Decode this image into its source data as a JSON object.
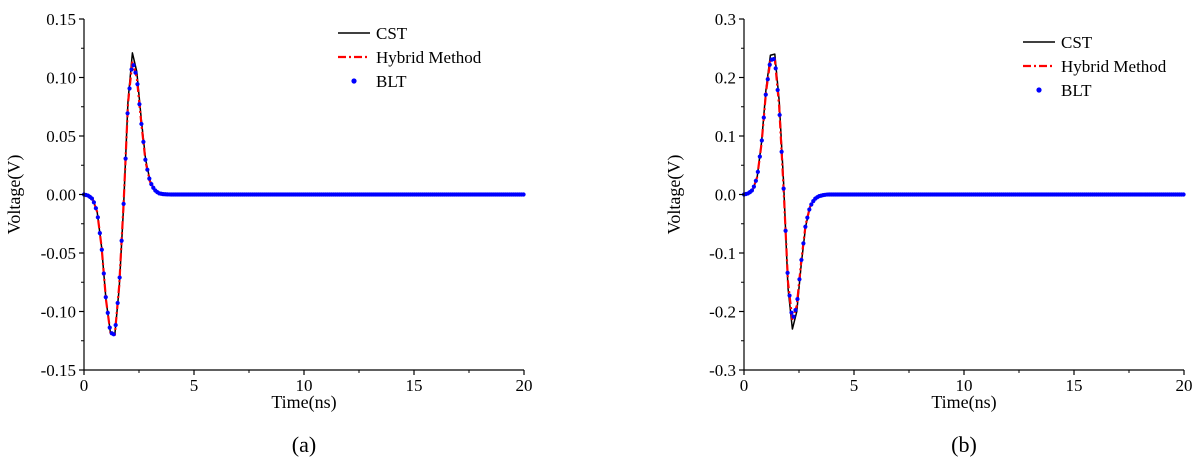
{
  "chart_data": [
    {
      "type": "line",
      "panel_label": "(a)",
      "xlabel": "Time(ns)",
      "ylabel": "Voltage(V)",
      "xlim": [
        0,
        20
      ],
      "ylim": [
        -0.15,
        0.15
      ],
      "xticks": [
        0,
        5,
        10,
        15,
        20
      ],
      "xtick_labels": [
        "0",
        "5",
        "10",
        "15",
        "20"
      ],
      "yticks": [
        -0.15,
        -0.1,
        -0.05,
        0.0,
        0.05,
        0.1,
        0.15
      ],
      "ytick_labels": [
        "-0.15",
        "-0.10",
        "-0.05",
        "0.00",
        "0.05",
        "0.10",
        "0.15"
      ],
      "grid": false,
      "legend": "top-right",
      "series": [
        {
          "name": "CST",
          "color": "#000000",
          "style": "solid",
          "x": [
            0,
            0.2,
            0.4,
            0.6,
            0.8,
            1.0,
            1.2,
            1.4,
            1.6,
            1.8,
            2.0,
            2.2,
            2.4,
            2.6,
            2.8,
            3.0,
            3.2,
            3.4,
            3.6,
            3.8,
            4.0,
            5,
            10,
            15,
            20
          ],
          "y": [
            0,
            -0.001,
            -0.004,
            -0.015,
            -0.045,
            -0.09,
            -0.118,
            -0.12,
            -0.08,
            -0.01,
            0.08,
            0.121,
            0.105,
            0.065,
            0.03,
            0.012,
            0.004,
            0.001,
            0.0003,
            0.0001,
            0,
            0,
            0,
            0,
            0
          ]
        },
        {
          "name": "Hybrid Method",
          "color": "#ff0000",
          "style": "dash-dot",
          "x": [
            0,
            0.2,
            0.4,
            0.6,
            0.8,
            1.0,
            1.2,
            1.4,
            1.6,
            1.8,
            2.0,
            2.2,
            2.4,
            2.6,
            2.8,
            3.0,
            3.2,
            3.4,
            3.6,
            3.8,
            4.0,
            5,
            10,
            15,
            20
          ],
          "y": [
            0,
            -0.001,
            -0.004,
            -0.015,
            -0.045,
            -0.09,
            -0.118,
            -0.12,
            -0.078,
            -0.008,
            0.078,
            0.114,
            0.1,
            0.062,
            0.028,
            0.011,
            0.004,
            0.001,
            0.0003,
            0.0001,
            0,
            0,
            0,
            0,
            0
          ]
        },
        {
          "name": "BLT",
          "color": "#0000ff",
          "style": "dots",
          "x": [
            0,
            0.2,
            0.4,
            0.6,
            0.8,
            1.0,
            1.2,
            1.4,
            1.6,
            1.8,
            2.0,
            2.2,
            2.4,
            2.6,
            2.8,
            3.0,
            3.2,
            3.4,
            3.6,
            3.8,
            4.0,
            5,
            10,
            15,
            20
          ],
          "y": [
            0,
            -0.001,
            -0.004,
            -0.015,
            -0.045,
            -0.09,
            -0.118,
            -0.12,
            -0.078,
            -0.008,
            0.078,
            0.114,
            0.1,
            0.062,
            0.028,
            0.011,
            0.004,
            0.001,
            0.0003,
            0.0001,
            0,
            0,
            0,
            0,
            0
          ]
        }
      ]
    },
    {
      "type": "line",
      "panel_label": "(b)",
      "xlabel": "Time(ns)",
      "ylabel": "Voltage(V)",
      "xlim": [
        0,
        20
      ],
      "ylim": [
        -0.3,
        0.3
      ],
      "xticks": [
        0,
        5,
        10,
        15,
        20
      ],
      "xtick_labels": [
        "0",
        "5",
        "10",
        "15",
        "20"
      ],
      "yticks": [
        -0.3,
        -0.2,
        -0.1,
        0.0,
        0.1,
        0.2,
        0.3
      ],
      "ytick_labels": [
        "-0.3",
        "-0.2",
        "-0.1",
        "0.0",
        "0.1",
        "0.2",
        "0.3"
      ],
      "grid": false,
      "legend": "top-right",
      "series": [
        {
          "name": "CST",
          "color": "#000000",
          "style": "solid",
          "x": [
            0,
            0.2,
            0.4,
            0.6,
            0.8,
            1.0,
            1.2,
            1.4,
            1.6,
            1.8,
            2.0,
            2.2,
            2.4,
            2.6,
            2.8,
            3.0,
            3.2,
            3.4,
            3.6,
            3.8,
            4.0,
            5,
            10,
            15,
            20
          ],
          "y": [
            0,
            0.002,
            0.008,
            0.03,
            0.09,
            0.18,
            0.238,
            0.24,
            0.16,
            0.02,
            -0.16,
            -0.23,
            -0.2,
            -0.12,
            -0.055,
            -0.022,
            -0.008,
            -0.003,
            -0.001,
            0,
            0,
            0,
            0,
            0,
            0
          ]
        },
        {
          "name": "Hybrid Method",
          "color": "#ff0000",
          "style": "dash-dot",
          "x": [
            0,
            0.2,
            0.4,
            0.6,
            0.8,
            1.0,
            1.2,
            1.4,
            1.6,
            1.8,
            2.0,
            2.2,
            2.4,
            2.6,
            2.8,
            3.0,
            3.2,
            3.4,
            3.6,
            3.8,
            4.0,
            5,
            10,
            15,
            20
          ],
          "y": [
            0,
            0.002,
            0.008,
            0.03,
            0.088,
            0.175,
            0.23,
            0.232,
            0.15,
            0.01,
            -0.15,
            -0.215,
            -0.19,
            -0.115,
            -0.052,
            -0.021,
            -0.008,
            -0.003,
            -0.001,
            0,
            0,
            0,
            0,
            0,
            0
          ]
        },
        {
          "name": "BLT",
          "color": "#0000ff",
          "style": "dots",
          "x": [
            0,
            0.2,
            0.4,
            0.6,
            0.8,
            1.0,
            1.2,
            1.4,
            1.6,
            1.8,
            2.0,
            2.2,
            2.4,
            2.6,
            2.8,
            3.0,
            3.2,
            3.4,
            3.6,
            3.8,
            4.0,
            5,
            10,
            15,
            20
          ],
          "y": [
            0,
            0.002,
            0.008,
            0.03,
            0.088,
            0.175,
            0.23,
            0.232,
            0.15,
            0.01,
            -0.15,
            -0.215,
            -0.19,
            -0.115,
            -0.052,
            -0.021,
            -0.008,
            -0.003,
            -0.001,
            0,
            0,
            0,
            0,
            0,
            0
          ]
        }
      ]
    }
  ]
}
